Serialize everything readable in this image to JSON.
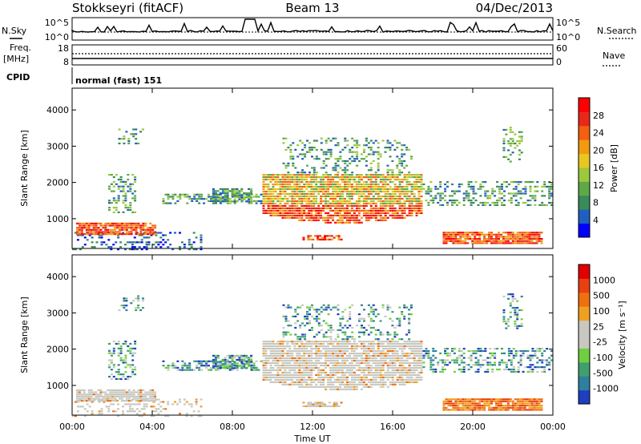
{
  "header": {
    "station": "Stokkseyri (fitACF)",
    "beam": "Beam 13",
    "date": "04/Dec/2013"
  },
  "panels": {
    "nsky_label": "N.Sky",
    "nsky_ticks": [
      "10^5",
      "10^0"
    ],
    "nsearch_label": "N.Search",
    "freq_label_line1": "Freq.",
    "freq_label_line2": "[MHz]",
    "freq_ticks": [
      "18",
      "8"
    ],
    "nave_ticks": [
      "60",
      "0"
    ],
    "nave_label": "Nave",
    "cpid_label": "CPID",
    "cpid_text": "normal (fast) 151"
  },
  "chart_data": [
    {
      "type": "heatmap",
      "name": "power",
      "ylabel": "Slant Range [km]",
      "xlabel": "",
      "ylim": [
        180,
        4600
      ],
      "xlim": [
        0,
        24
      ],
      "yticks": [
        "4000",
        "3000",
        "2000",
        "1000"
      ],
      "colorbar_label": "Power [dB]",
      "colorbar_ticks": [
        "28",
        "24",
        "20",
        "16",
        "12",
        "8",
        "4"
      ],
      "colorbar_colors": [
        "#0000ff",
        "#1f5fbf",
        "#3a8a5a",
        "#5fa84a",
        "#9cc83c",
        "#e8c820",
        "#f29a10",
        "#f26010",
        "#e82818",
        "#ff0000"
      ]
    },
    {
      "type": "heatmap",
      "name": "velocity",
      "ylabel": "Slant Range [km]",
      "xlabel": "Time UT",
      "ylim": [
        180,
        4600
      ],
      "xlim": [
        0,
        24
      ],
      "yticks": [
        "4000",
        "3000",
        "2000",
        "1000"
      ],
      "xticks": [
        "00:00",
        "04:00",
        "08:00",
        "12:00",
        "16:00",
        "20:00",
        "00:00"
      ],
      "colorbar_label": "Velocity [m s⁻¹]",
      "colorbar_ticks": [
        "1000",
        "500",
        "100",
        "25",
        "-25",
        "-100",
        "-500",
        "-1000"
      ],
      "colorbar_colors": [
        "#1f3fbf",
        "#2f7f9f",
        "#3f9f6f",
        "#6fcf3f",
        "#c8c8c0",
        "#c8c8c0",
        "#f0a020",
        "#f07010",
        "#e84010",
        "#e00000"
      ]
    }
  ]
}
